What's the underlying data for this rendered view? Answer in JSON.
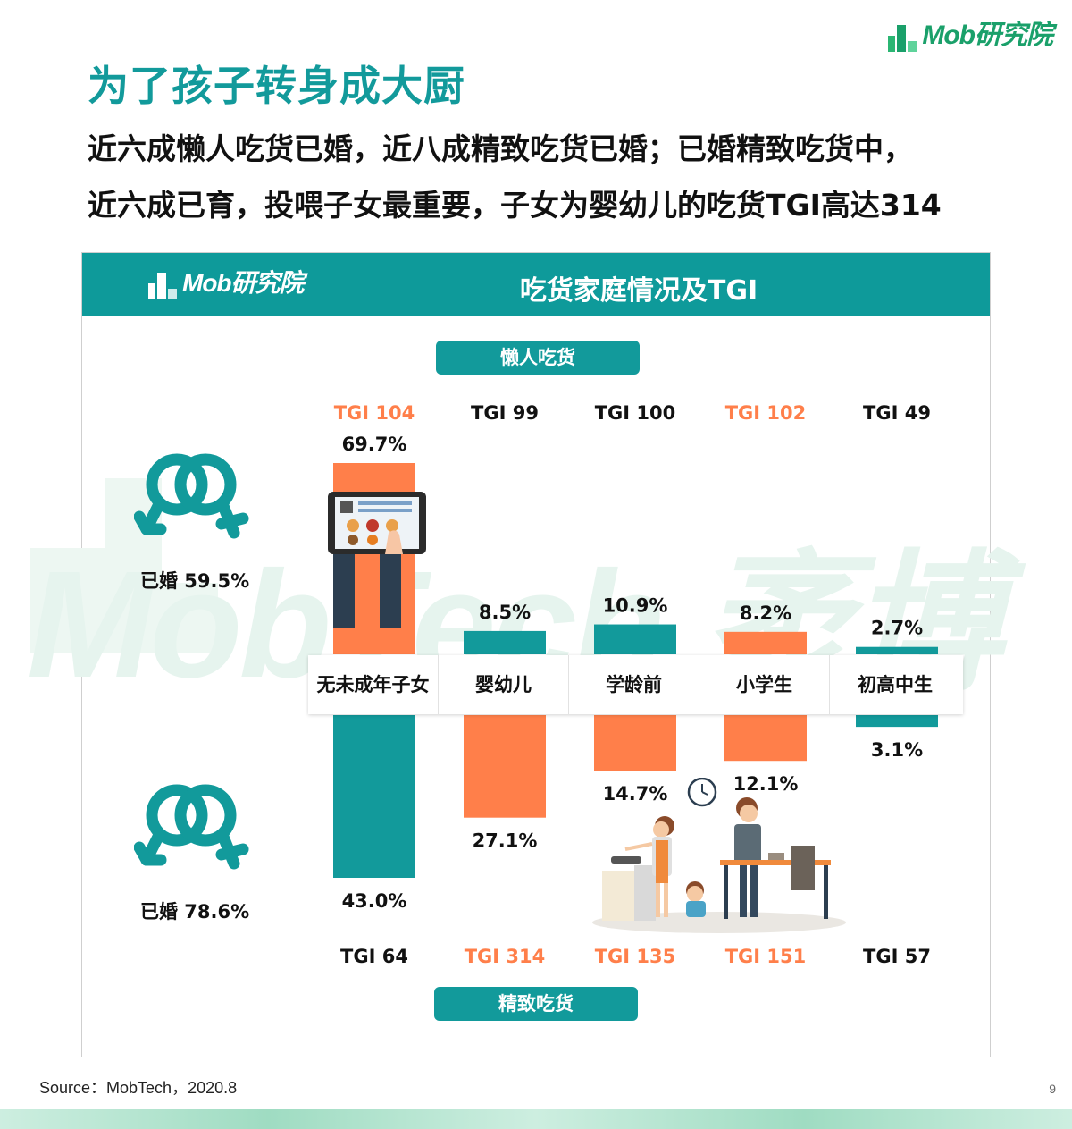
{
  "brand": {
    "logo_text": "Mob研究院"
  },
  "title": "为了孩子转身成大厨",
  "subtitle_lines": [
    "近六成懒人吃货已婚，近八成精致吃货已婚；已婚精致吃货中，",
    "近六成已育，投喂子女最重要，子女为婴幼儿的吃货TGI高达314"
  ],
  "panel": {
    "logo_text": "Mob研究院",
    "title": "吃货家庭情况及TGI"
  },
  "watermark": "MobTech 袤博",
  "colors": {
    "teal": "#129a9b",
    "orange": "#ff7f4a",
    "highlight_text": "#ff7f4a"
  },
  "chart_data": {
    "type": "bar",
    "title": "吃货家庭情况及TGI",
    "categories": [
      "无未成年子女",
      "婴幼儿",
      "学龄前",
      "小学生",
      "初高中生"
    ],
    "series": [
      {
        "name": "懒人吃货",
        "married_label": "已婚 59.5%",
        "values": [
          69.7,
          8.5,
          10.9,
          8.2,
          2.7
        ],
        "value_labels": [
          "69.7%",
          "8.5%",
          "10.9%",
          "8.2%",
          "2.7%"
        ],
        "tgi": [
          104,
          99,
          100,
          102,
          49
        ],
        "tgi_labels": [
          "TGI 104",
          "TGI 99",
          "TGI 100",
          "TGI 102",
          "TGI 49"
        ],
        "bar_colors": [
          "#ff7f4a",
          "#129a9b",
          "#129a9b",
          "#ff7f4a",
          "#129a9b"
        ],
        "tgi_colors": [
          "#ff7f4a",
          "#111111",
          "#111111",
          "#ff7f4a",
          "#111111"
        ]
      },
      {
        "name": "精致吃货",
        "married_label": "已婚 78.6%",
        "values": [
          43.0,
          27.1,
          14.7,
          12.1,
          3.1
        ],
        "value_labels": [
          "43.0%",
          "27.1%",
          "14.7%",
          "12.1%",
          "3.1%"
        ],
        "tgi": [
          64,
          314,
          135,
          151,
          57
        ],
        "tgi_labels": [
          "TGI 64",
          "TGI 314",
          "TGI 135",
          "TGI 151",
          "TGI 57"
        ],
        "bar_colors": [
          "#129a9b",
          "#ff7f4a",
          "#ff7f4a",
          "#ff7f4a",
          "#129a9b"
        ],
        "tgi_colors": [
          "#111111",
          "#ff7f4a",
          "#ff7f4a",
          "#ff7f4a",
          "#111111"
        ]
      }
    ]
  },
  "footer": {
    "source": "Source：MobTech，2020.8",
    "page_number": "9"
  }
}
